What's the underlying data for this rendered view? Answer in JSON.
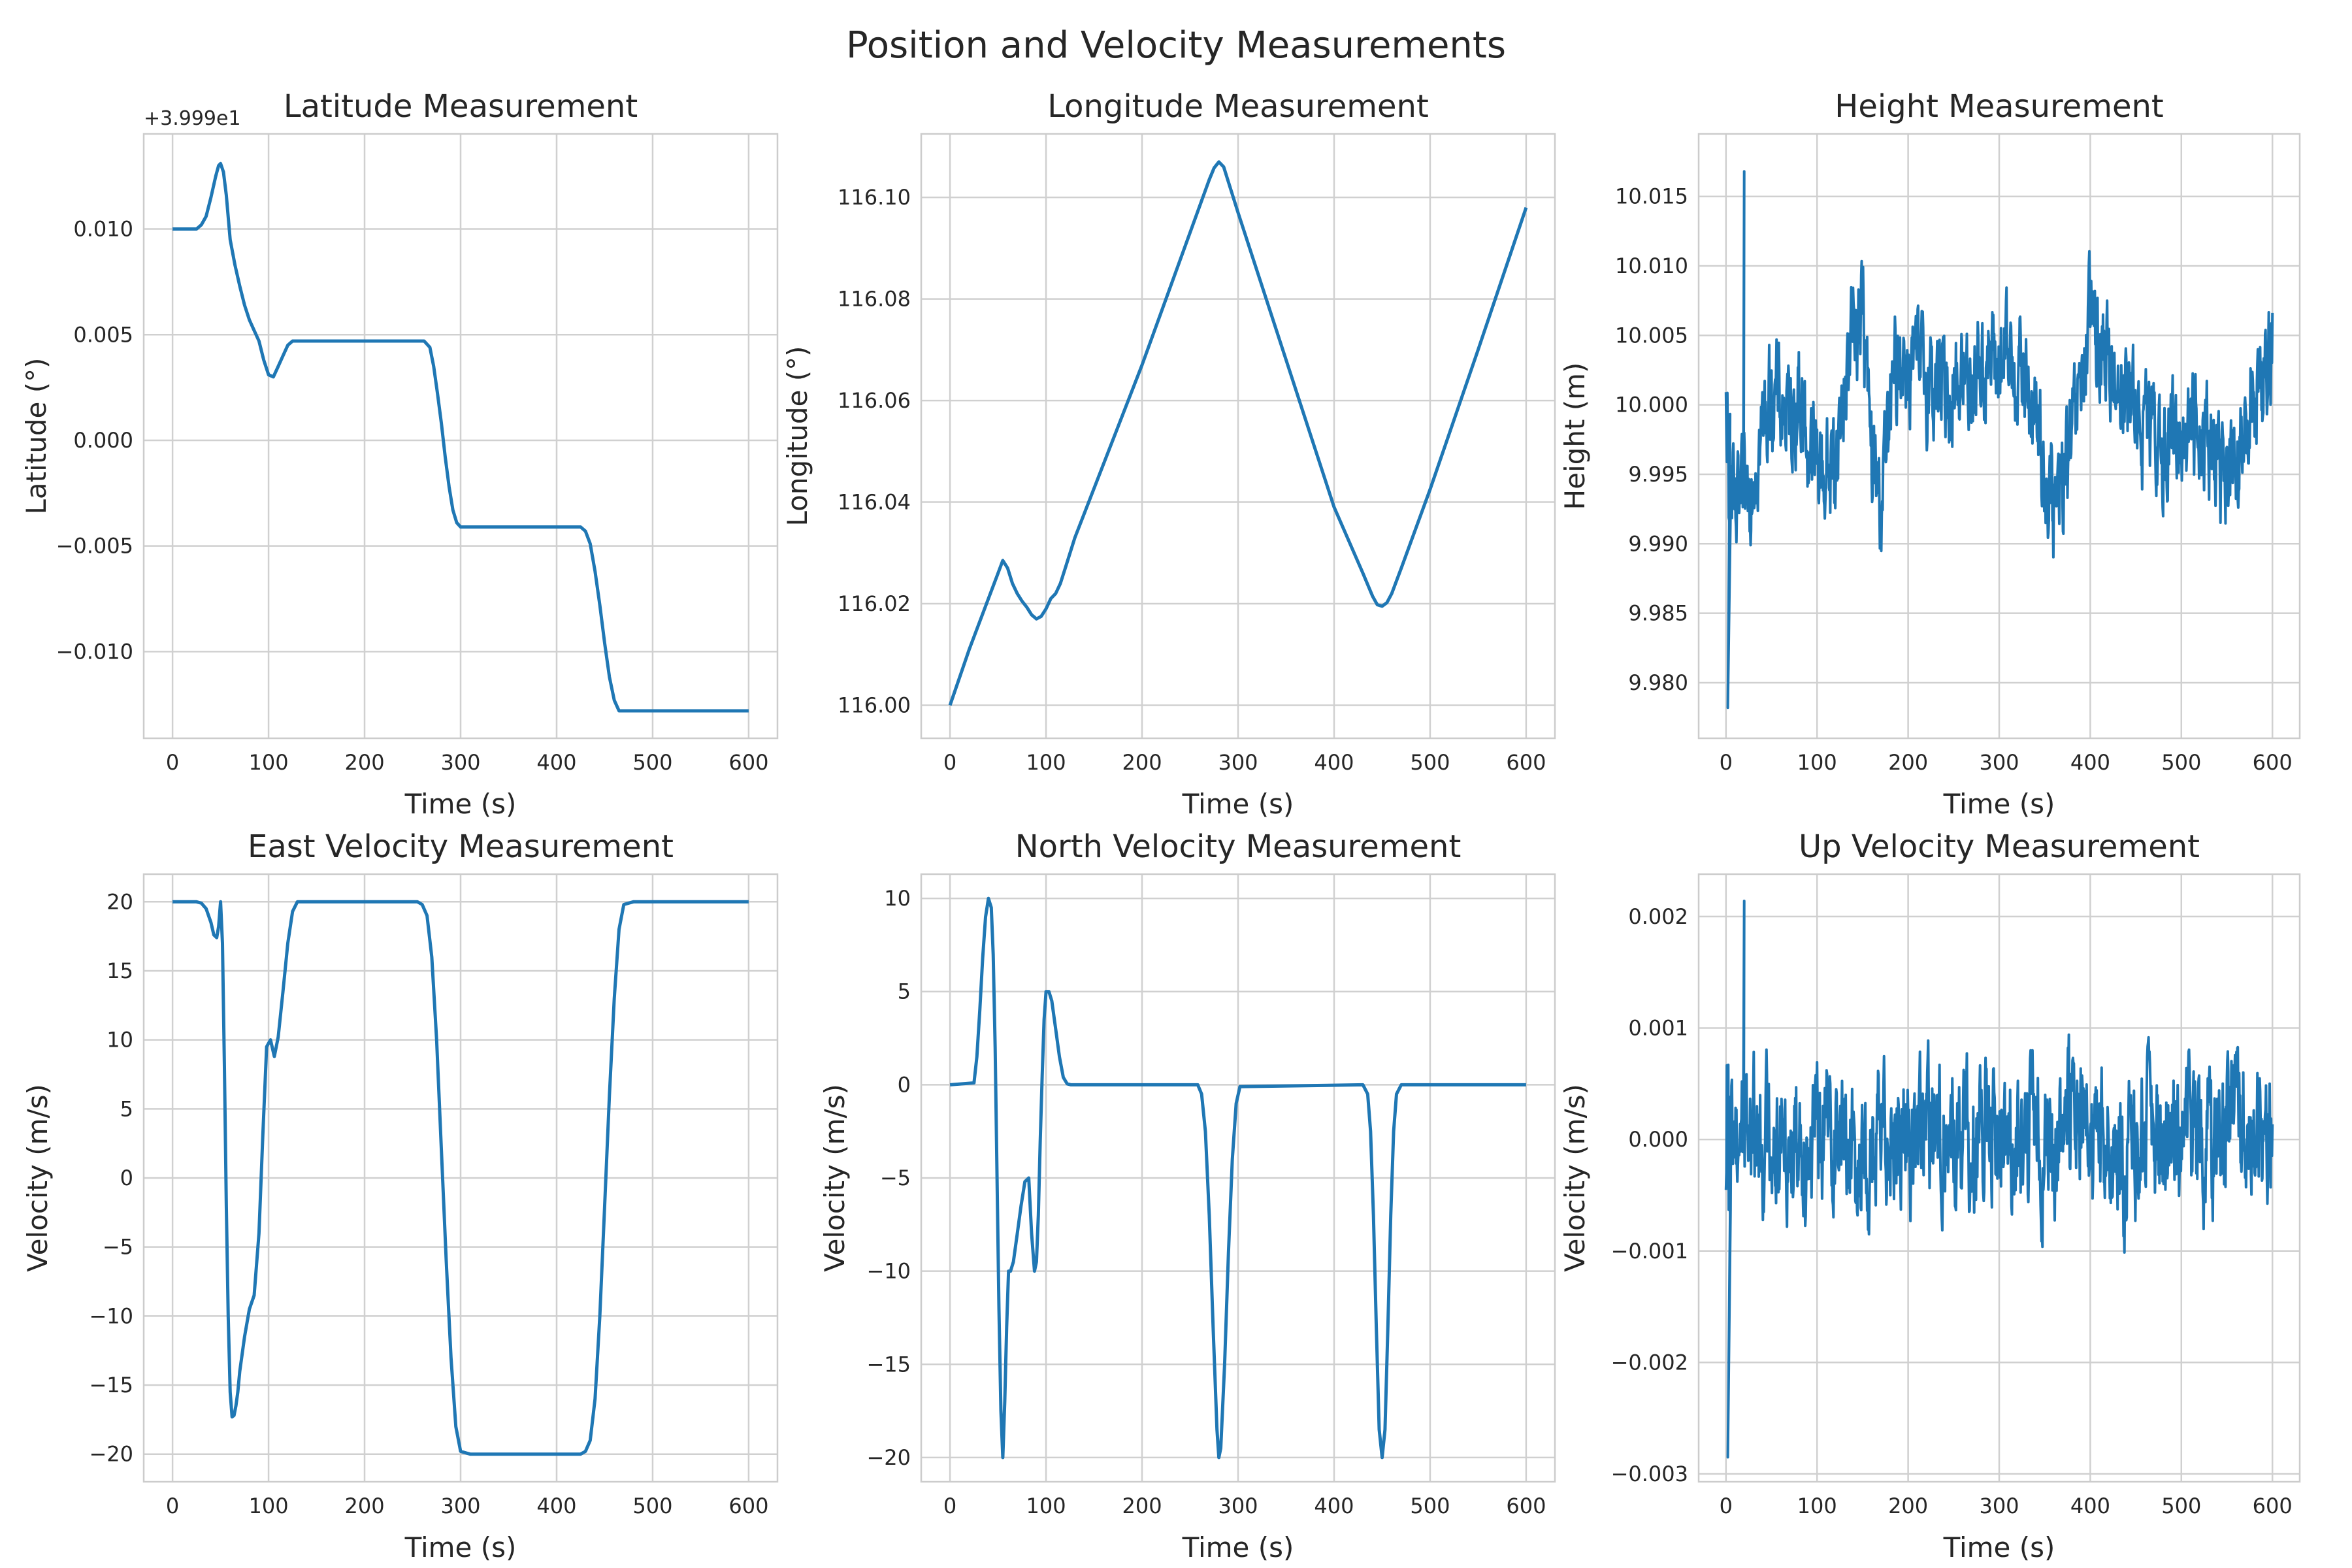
{
  "figure": {
    "suptitle": "Position and Velocity Measurements",
    "line_color": "#1f77b4",
    "grid_color": "#d0d0d0",
    "spine_color": "#cccccc"
  },
  "chart_data": [
    {
      "id": "latitude",
      "type": "line",
      "title": "Latitude Measurement",
      "xlabel": "Time (s)",
      "ylabel": "Latitude (°)",
      "offset_label": "+3.999e1",
      "xlim": [
        -30,
        630
      ],
      "ylim": [
        -0.0141,
        0.0145
      ],
      "xticks": [
        0,
        100,
        200,
        300,
        400,
        500,
        600
      ],
      "xticklabels": [
        "0",
        "100",
        "200",
        "300",
        "400",
        "500",
        "600"
      ],
      "yticks": [
        -0.01,
        -0.005,
        0.0,
        0.005,
        0.01
      ],
      "yticklabels": [
        "−0.010",
        "−0.005",
        "0.000",
        "0.005",
        "0.010"
      ],
      "grid": true,
      "noisy": false,
      "series": [
        {
          "x": [
            0,
            25,
            30,
            35,
            40,
            45,
            48,
            50,
            53,
            56,
            60,
            65,
            70,
            75,
            80,
            85,
            90,
            95,
            100,
            105,
            110,
            115,
            120,
            125,
            130,
            200,
            255,
            262,
            268,
            272,
            276,
            280,
            284,
            288,
            292,
            296,
            300,
            305,
            310,
            400,
            420,
            425,
            430,
            435,
            440,
            445,
            450,
            455,
            460,
            465,
            470,
            480,
            600
          ],
          "y": [
            0.01,
            0.01,
            0.0102,
            0.0106,
            0.0115,
            0.0125,
            0.013,
            0.0131,
            0.0127,
            0.0116,
            0.0095,
            0.0083,
            0.0073,
            0.0064,
            0.0057,
            0.0052,
            0.0047,
            0.0038,
            0.0031,
            0.003,
            0.0035,
            0.004,
            0.0045,
            0.0047,
            0.0047,
            0.0047,
            0.0047,
            0.0047,
            0.0044,
            0.0035,
            0.0022,
            0.0008,
            -0.0008,
            -0.0022,
            -0.0033,
            -0.0039,
            -0.0041,
            -0.0041,
            -0.0041,
            -0.0041,
            -0.0041,
            -0.0041,
            -0.0043,
            -0.0049,
            -0.0062,
            -0.0078,
            -0.0096,
            -0.0112,
            -0.0123,
            -0.0128,
            -0.0128,
            -0.0128,
            -0.0128
          ]
        }
      ]
    },
    {
      "id": "longitude",
      "type": "line",
      "title": "Longitude Measurement",
      "xlabel": "Time (s)",
      "ylabel": "Longitude (°)",
      "xlim": [
        -30,
        630
      ],
      "ylim": [
        115.9935,
        116.1125
      ],
      "xticks": [
        0,
        100,
        200,
        300,
        400,
        500,
        600
      ],
      "xticklabels": [
        "0",
        "100",
        "200",
        "300",
        "400",
        "500",
        "600"
      ],
      "yticks": [
        116.0,
        116.02,
        116.04,
        116.06,
        116.08,
        116.1
      ],
      "yticklabels": [
        "116.00",
        "116.02",
        "116.04",
        "116.06",
        "116.08",
        "116.10"
      ],
      "grid": true,
      "noisy": false,
      "series": [
        {
          "x": [
            0,
            20,
            40,
            50,
            55,
            60,
            65,
            70,
            75,
            80,
            85,
            90,
            95,
            100,
            105,
            110,
            115,
            120,
            130,
            200,
            270,
            275,
            280,
            285,
            290,
            300,
            350,
            400,
            430,
            440,
            445,
            450,
            455,
            460,
            470,
            500,
            550,
            600
          ],
          "y": [
            116.0,
            116.011,
            116.021,
            116.026,
            116.0285,
            116.027,
            116.024,
            116.022,
            116.0205,
            116.0193,
            116.0178,
            116.017,
            116.0175,
            116.019,
            116.021,
            116.022,
            116.024,
            116.027,
            116.033,
            116.067,
            116.1035,
            116.1058,
            116.107,
            116.106,
            116.103,
            116.097,
            116.068,
            116.039,
            116.026,
            116.0215,
            116.0198,
            116.0195,
            116.0202,
            116.022,
            116.027,
            116.0425,
            116.07,
            116.098
          ]
        }
      ]
    },
    {
      "id": "height",
      "type": "line",
      "title": "Height Measurement",
      "xlabel": "Time (s)",
      "ylabel": "Height (m)",
      "xlim": [
        -30,
        630
      ],
      "ylim": [
        9.976,
        10.0195
      ],
      "xticks": [
        0,
        100,
        200,
        300,
        400,
        500,
        600
      ],
      "xticklabels": [
        "0",
        "100",
        "200",
        "300",
        "400",
        "500",
        "600"
      ],
      "yticks": [
        9.98,
        9.985,
        9.99,
        9.995,
        10.0,
        10.005,
        10.01,
        10.015
      ],
      "yticklabels": [
        "9.980",
        "9.985",
        "9.990",
        "9.995",
        "10.000",
        "10.005",
        "10.010",
        "10.015"
      ],
      "grid": true,
      "noisy": true,
      "series": [
        {
          "x": [
            0,
            10,
            20,
            30,
            40,
            50,
            60,
            70,
            80,
            90,
            100,
            110,
            120,
            130,
            140,
            150,
            160,
            170,
            180,
            190,
            200,
            220,
            240,
            260,
            280,
            300,
            320,
            340,
            360,
            380,
            400,
            420,
            440,
            460,
            480,
            500,
            520,
            540,
            560,
            580,
            600
          ],
          "y": [
            9.998,
            9.991,
            9.993,
            9.996,
            9.998,
            10.001,
            10.0,
            9.999,
            10.001,
            9.997,
            9.996,
            9.995,
            9.996,
            10.001,
            10.006,
            10.007,
            9.996,
            9.993,
            9.999,
            10.004,
            10.003,
            10.002,
            10.001,
            10.002,
            10.003,
            10.003,
            10.003,
            9.999,
            9.992,
            9.997,
            10.006,
            10.003,
            10.001,
            9.998,
            9.997,
            9.998,
            9.999,
            9.996,
            9.994,
            10.001,
            10.004
          ],
          "noise_amplitude": 0.0032,
          "min": 9.9782,
          "max": 10.0168
        }
      ]
    },
    {
      "id": "east_velocity",
      "type": "line",
      "title": "East Velocity Measurement",
      "xlabel": "Time (s)",
      "ylabel": "Velocity (m/s)",
      "xlim": [
        -30,
        630
      ],
      "ylim": [
        -22,
        22
      ],
      "xticks": [
        0,
        100,
        200,
        300,
        400,
        500,
        600
      ],
      "xticklabels": [
        "0",
        "100",
        "200",
        "300",
        "400",
        "500",
        "600"
      ],
      "yticks": [
        -20,
        -15,
        -10,
        -5,
        0,
        5,
        10,
        15,
        20
      ],
      "yticklabels": [
        "−20",
        "−15",
        "−10",
        "−5",
        "0",
        "5",
        "10",
        "15",
        "20"
      ],
      "grid": true,
      "noisy": false,
      "series": [
        {
          "x": [
            0,
            25,
            30,
            35,
            40,
            43,
            46,
            48,
            50,
            52,
            54,
            56,
            58,
            60,
            62,
            64,
            66,
            68,
            70,
            75,
            80,
            85,
            90,
            94,
            98,
            102,
            106,
            110,
            115,
            120,
            125,
            130,
            200,
            255,
            260,
            265,
            270,
            275,
            280,
            285,
            290,
            295,
            300,
            310,
            400,
            425,
            430,
            435,
            440,
            445,
            450,
            455,
            460,
            465,
            470,
            480,
            600
          ],
          "y": [
            20,
            20,
            19.9,
            19.5,
            18.5,
            17.6,
            17.4,
            18.2,
            20,
            17,
            8,
            -2,
            -10,
            -15.5,
            -17.3,
            -17.2,
            -16.5,
            -15.5,
            -14,
            -11.5,
            -9.5,
            -8.5,
            -4,
            3,
            9.5,
            10,
            8.8,
            10.2,
            13.5,
            17,
            19.3,
            20,
            20,
            20,
            19.8,
            19,
            16,
            10,
            2,
            -6,
            -13,
            -18,
            -19.8,
            -20,
            -20,
            -20,
            -19.8,
            -19,
            -16,
            -10,
            -2,
            6,
            13,
            18,
            19.8,
            20,
            20
          ]
        }
      ]
    },
    {
      "id": "north_velocity",
      "type": "line",
      "title": "North Velocity Measurement",
      "xlabel": "Time (s)",
      "ylabel": "Velocity (m/s)",
      "xlim": [
        -30,
        630
      ],
      "ylim": [
        -21.3,
        11.3
      ],
      "xticks": [
        0,
        100,
        200,
        300,
        400,
        500,
        600
      ],
      "xticklabels": [
        "0",
        "100",
        "200",
        "300",
        "400",
        "500",
        "600"
      ],
      "yticks": [
        -20,
        -15,
        -10,
        -5,
        0,
        5,
        10
      ],
      "yticklabels": [
        "−20",
        "−15",
        "−10",
        "−5",
        "0",
        "5",
        "10"
      ],
      "grid": true,
      "noisy": false,
      "series": [
        {
          "x": [
            0,
            25,
            28,
            31,
            34,
            37,
            40,
            43,
            45,
            47,
            49,
            51,
            53,
            55,
            57,
            59,
            61,
            63,
            66,
            70,
            74,
            78,
            82,
            85,
            88,
            90,
            92,
            94,
            96,
            98,
            100,
            103,
            106,
            110,
            114,
            118,
            122,
            126,
            130,
            200,
            258,
            262,
            266,
            270,
            274,
            278,
            280,
            282,
            286,
            290,
            294,
            298,
            302,
            430,
            435,
            438,
            441,
            444,
            447,
            450,
            453,
            456,
            459,
            462,
            465,
            470,
            600
          ],
          "y": [
            0,
            0.1,
            1.5,
            4,
            6.8,
            9,
            10,
            9.5,
            7,
            2,
            -5,
            -12,
            -17.5,
            -20,
            -17,
            -13,
            -10,
            -10,
            -9.5,
            -8,
            -6.5,
            -5.2,
            -5,
            -8,
            -10,
            -9.5,
            -7,
            -3,
            0.5,
            3.5,
            5,
            5,
            4.5,
            3,
            1.5,
            0.4,
            0.05,
            0,
            0,
            0,
            0,
            -0.5,
            -2.5,
            -7,
            -13,
            -18.5,
            -20,
            -19.5,
            -15,
            -9,
            -4,
            -1,
            -0.1,
            0,
            -0.5,
            -2.5,
            -7,
            -13,
            -18.5,
            -20,
            -18.5,
            -13,
            -7,
            -2.5,
            -0.5,
            0,
            0
          ]
        }
      ]
    },
    {
      "id": "up_velocity",
      "type": "line",
      "title": "Up Velocity Measurement",
      "xlabel": "Time (s)",
      "ylabel": "Velocity (m/s)",
      "xlim": [
        -30,
        630
      ],
      "ylim": [
        -0.00307,
        0.00238
      ],
      "xticks": [
        0,
        100,
        200,
        300,
        400,
        500,
        600
      ],
      "xticklabels": [
        "0",
        "100",
        "200",
        "300",
        "400",
        "500",
        "600"
      ],
      "yticks": [
        -0.003,
        -0.002,
        -0.001,
        0.0,
        0.001,
        0.002
      ],
      "yticklabels": [
        "−0.003",
        "−0.002",
        "−0.001",
        "0.000",
        "0.001",
        "0.002"
      ],
      "grid": true,
      "noisy": true,
      "series": [
        {
          "x": [
            0,
            10,
            20,
            30,
            40,
            50,
            60,
            70,
            80,
            90,
            100,
            120,
            140,
            160,
            180,
            200,
            220,
            240,
            260,
            280,
            300,
            320,
            340,
            360,
            380,
            400,
            420,
            440,
            460,
            480,
            500,
            520,
            540,
            560,
            580,
            600
          ],
          "y": [
            0.0,
            0.0001,
            0.0002,
            0.0001,
            0.0,
            0.0001,
            0.0,
            0.0,
            0.0001,
            0.0,
            0.0,
            0.0001,
            -0.0001,
            -0.0002,
            0.0002,
            0.0,
            0.0001,
            0.0,
            0.0,
            0.0,
            0.0,
            0.0001,
            0.0,
            -0.0002,
            0.0003,
            0.0,
            -0.0001,
            -0.0003,
            0.0,
            0.0,
            -0.0001,
            0.0,
            0.0,
            0.0002,
            0.0001,
            0.0
          ],
          "noise_amplitude": 0.0005,
          "min": -0.00285,
          "max": 0.00214
        }
      ]
    }
  ]
}
